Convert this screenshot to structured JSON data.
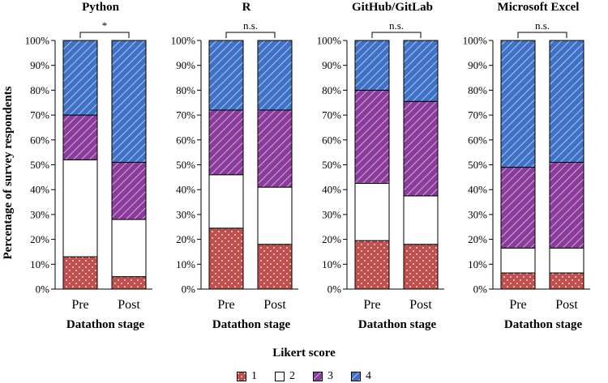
{
  "chart_data": [
    {
      "type": "bar",
      "stacked": true,
      "title": "Python",
      "categories": [
        "Pre",
        "Post"
      ],
      "series": [
        {
          "name": "1",
          "values": [
            13,
            5
          ]
        },
        {
          "name": "2",
          "values": [
            39,
            23
          ]
        },
        {
          "name": "3",
          "values": [
            18,
            23
          ]
        },
        {
          "name": "4",
          "values": [
            30,
            49
          ]
        }
      ],
      "significance": "*",
      "xlabel": "Datathon stage",
      "ylabel": "Percentage of survey respondents",
      "ylim": [
        0,
        100
      ],
      "yticks": [
        "0%",
        "10%",
        "20%",
        "30%",
        "40%",
        "50%",
        "60%",
        "70%",
        "80%",
        "90%",
        "100%"
      ]
    },
    {
      "type": "bar",
      "stacked": true,
      "title": "R",
      "categories": [
        "Pre",
        "Post"
      ],
      "series": [
        {
          "name": "1",
          "values": [
            24.5,
            18
          ]
        },
        {
          "name": "2",
          "values": [
            21.5,
            23
          ]
        },
        {
          "name": "3",
          "values": [
            26,
            31
          ]
        },
        {
          "name": "4",
          "values": [
            28,
            28
          ]
        }
      ],
      "significance": "n.s.",
      "xlabel": "Datathon stage",
      "ylim": [
        0,
        100
      ],
      "yticks": [
        "0%",
        "10%",
        "20%",
        "30%",
        "40%",
        "50%",
        "60%",
        "70%",
        "80%",
        "90%",
        "100%"
      ]
    },
    {
      "type": "bar",
      "stacked": true,
      "title": "GitHub/GitLab",
      "categories": [
        "Pre",
        "Post"
      ],
      "series": [
        {
          "name": "1",
          "values": [
            19.5,
            18
          ]
        },
        {
          "name": "2",
          "values": [
            23,
            19.5
          ]
        },
        {
          "name": "3",
          "values": [
            37.5,
            38
          ]
        },
        {
          "name": "4",
          "values": [
            20,
            24.5
          ]
        }
      ],
      "significance": "n.s.",
      "xlabel": "Datathon stage",
      "ylim": [
        0,
        100
      ],
      "yticks": [
        "0%",
        "10%",
        "20%",
        "30%",
        "40%",
        "50%",
        "60%",
        "70%",
        "80%",
        "90%",
        "100%"
      ]
    },
    {
      "type": "bar",
      "stacked": true,
      "title": "Microsoft Excel",
      "categories": [
        "Pre",
        "Post"
      ],
      "series": [
        {
          "name": "1",
          "values": [
            6.5,
            6.5
          ]
        },
        {
          "name": "2",
          "values": [
            10,
            10
          ]
        },
        {
          "name": "3",
          "values": [
            32.5,
            34.5
          ]
        },
        {
          "name": "4",
          "values": [
            51,
            49
          ]
        }
      ],
      "significance": "n.s.",
      "xlabel": "Datathon stage",
      "ylim": [
        0,
        100
      ],
      "yticks": [
        "0%",
        "10%",
        "20%",
        "30%",
        "40%",
        "50%",
        "60%",
        "70%",
        "80%",
        "90%",
        "100%"
      ]
    }
  ],
  "legend": {
    "title": "Likert score",
    "items": [
      {
        "label": "1",
        "pattern": "dots"
      },
      {
        "label": "2",
        "pattern": "solid"
      },
      {
        "label": "3",
        "pattern": "hatch"
      },
      {
        "label": "4",
        "pattern": "hatch"
      }
    ],
    "placement": "bottom"
  },
  "colors": {
    "1": "#c0504d",
    "2": "#ffffff",
    "3": "#8b3b9a",
    "4": "#3f72c6"
  }
}
